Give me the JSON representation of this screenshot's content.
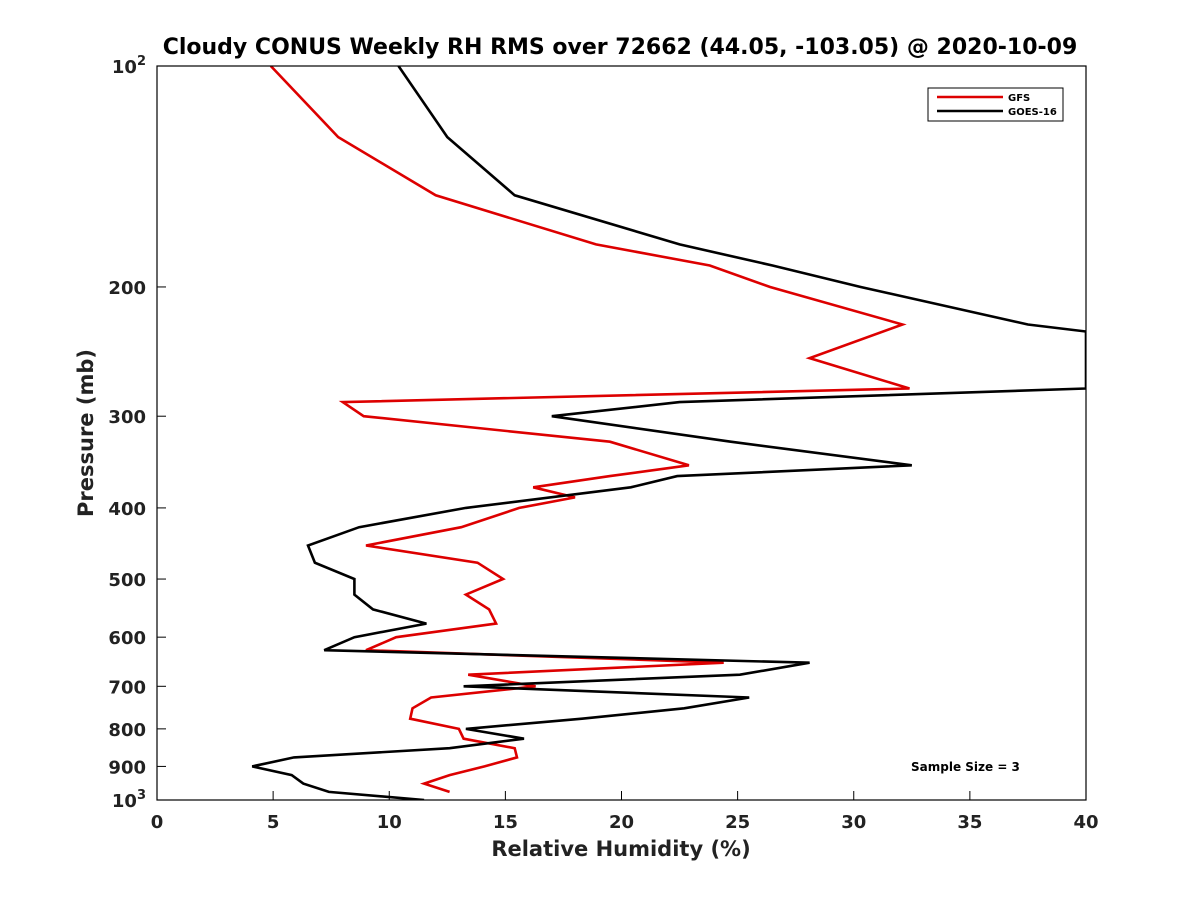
{
  "chart_data": {
    "type": "line",
    "title": "Cloudy CONUS Weekly RH RMS over 72662 (44.05, -103.05) @ 2020-10-09",
    "xlabel": "Relative Humidity (%)",
    "ylabel": "Pressure (mb)",
    "xlim": [
      0,
      40
    ],
    "ylim": [
      100,
      1000
    ],
    "y_scale": "log",
    "y_reversed": true,
    "x_ticks": [
      "0",
      "5",
      "10",
      "15",
      "20",
      "25",
      "30",
      "35",
      "40"
    ],
    "y_ticks": [
      {
        "value": 100,
        "base": "10",
        "exp": "2"
      },
      {
        "value": 200,
        "label": "200"
      },
      {
        "value": 300,
        "label": "300"
      },
      {
        "value": 400,
        "label": "400"
      },
      {
        "value": 500,
        "label": "500"
      },
      {
        "value": 600,
        "label": "600"
      },
      {
        "value": 700,
        "label": "700"
      },
      {
        "value": 800,
        "label": "800"
      },
      {
        "value": 900,
        "label": "900"
      },
      {
        "value": 1000,
        "base": "10",
        "exp": "3"
      }
    ],
    "legend_position": "top-right",
    "annotation": "Sample Size = 3",
    "series": [
      {
        "name": "GFS",
        "color": "#dd0000",
        "points": [
          [
            4.9,
            100
          ],
          [
            7.8,
            125
          ],
          [
            12.0,
            150
          ],
          [
            18.9,
            175
          ],
          [
            23.8,
            187
          ],
          [
            26.4,
            200
          ],
          [
            32.1,
            225
          ],
          [
            28.1,
            250
          ],
          [
            32.4,
            275
          ],
          [
            8.0,
            287
          ],
          [
            8.9,
            300
          ],
          [
            19.5,
            325
          ],
          [
            22.9,
            350
          ],
          [
            19.5,
            362
          ],
          [
            16.2,
            375
          ],
          [
            18.0,
            387
          ],
          [
            15.6,
            400
          ],
          [
            13.1,
            425
          ],
          [
            9.0,
            450
          ],
          [
            13.8,
            475
          ],
          [
            14.9,
            500
          ],
          [
            13.3,
            525
          ],
          [
            14.3,
            550
          ],
          [
            14.6,
            575
          ],
          [
            10.3,
            600
          ],
          [
            9.0,
            625
          ],
          [
            24.4,
            650
          ],
          [
            13.4,
            675
          ],
          [
            16.3,
            700
          ],
          [
            11.8,
            725
          ],
          [
            11.0,
            750
          ],
          [
            10.9,
            775
          ],
          [
            13.0,
            800
          ],
          [
            13.2,
            825
          ],
          [
            15.4,
            850
          ],
          [
            15.5,
            875
          ],
          [
            14.1,
            900
          ],
          [
            12.6,
            925
          ],
          [
            11.5,
            950
          ],
          [
            12.6,
            975
          ]
        ]
      },
      {
        "name": "GOES-16",
        "color": "#000000",
        "points": [
          [
            10.4,
            100
          ],
          [
            12.5,
            125
          ],
          [
            15.4,
            150
          ],
          [
            22.5,
            175
          ],
          [
            26.5,
            187
          ],
          [
            30.3,
            200
          ],
          [
            37.5,
            225
          ],
          [
            40,
            230
          ],
          [
            40,
            275
          ],
          [
            22.5,
            287
          ],
          [
            17.0,
            300
          ],
          [
            24.7,
            325
          ],
          [
            32.5,
            350
          ],
          [
            22.4,
            362
          ],
          [
            20.4,
            375
          ],
          [
            13.3,
            400
          ],
          [
            8.7,
            425
          ],
          [
            6.5,
            450
          ],
          [
            6.8,
            475
          ],
          [
            8.5,
            500
          ],
          [
            8.5,
            525
          ],
          [
            9.3,
            550
          ],
          [
            11.6,
            575
          ],
          [
            8.5,
            600
          ],
          [
            7.2,
            625
          ],
          [
            28.1,
            650
          ],
          [
            25.1,
            675
          ],
          [
            13.2,
            700
          ],
          [
            25.5,
            725
          ],
          [
            22.7,
            750
          ],
          [
            18.3,
            775
          ],
          [
            13.3,
            800
          ],
          [
            15.8,
            825
          ],
          [
            12.6,
            850
          ],
          [
            5.9,
            875
          ],
          [
            4.1,
            900
          ],
          [
            5.8,
            925
          ],
          [
            6.3,
            950
          ],
          [
            7.4,
            975
          ],
          [
            11.5,
            1000
          ]
        ]
      }
    ]
  }
}
